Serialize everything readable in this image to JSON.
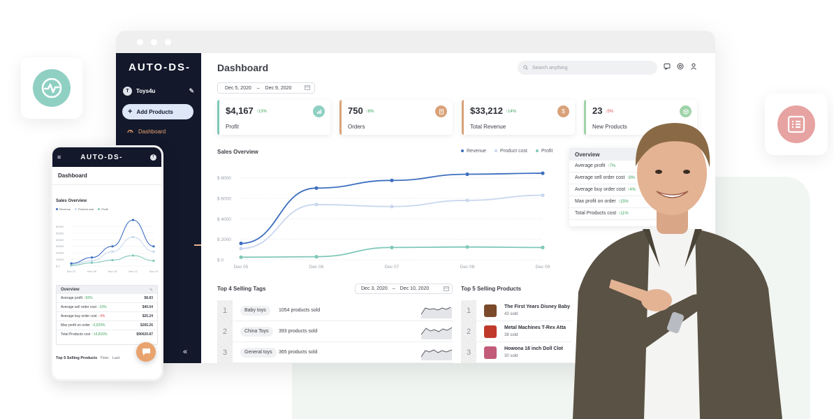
{
  "brand": {
    "logo_text": "AUTO-DS-"
  },
  "sidebar": {
    "store_initial": "T",
    "store_name": "Toys4u",
    "add_products_label": "Add Products",
    "nav_dashboard_label": "Dashboard",
    "collapse_icon": "«"
  },
  "header": {
    "title": "Dashboard",
    "search_placeholder": "Search anything"
  },
  "date_range": {
    "start": "Dec 5, 2020",
    "separator": "–",
    "end": "Dec 9, 2020"
  },
  "stats": [
    {
      "value": "$4,167",
      "change": "↑13%",
      "label": "Profit",
      "accent": "#7fc8b8",
      "icon": "chart-icon"
    },
    {
      "value": "750",
      "change": "↑6%",
      "label": "Orders",
      "accent": "#d9a27a",
      "icon": "receipt-icon"
    },
    {
      "value": "$33,212",
      "change": "↑14%",
      "label": "Total Revenue",
      "accent": "#d9a27a",
      "icon": "dollar-icon"
    },
    {
      "value": "23",
      "change": "↓5%",
      "label": "New Products",
      "accent": "#9fd3a8",
      "icon": "box-icon"
    }
  ],
  "sales_overview": {
    "title": "Sales Overview"
  },
  "chart_data": {
    "type": "line",
    "title": "Sales Overview",
    "x": [
      "Dec 05",
      "Dec 06",
      "Dec 07",
      "Dec 08",
      "Dec 09"
    ],
    "y_ticks": [
      "$ 0",
      "$ 2000",
      "$ 4000",
      "$ 6000",
      "$ 8000"
    ],
    "ylim": [
      0,
      9000
    ],
    "series": [
      {
        "name": "Revenue",
        "color": "#3d6fbf",
        "points": [
          [
            0,
            1600
          ],
          [
            0.5,
            7000
          ],
          [
            1.0,
            7750
          ],
          [
            1.5,
            8350
          ],
          [
            2.0,
            8450
          ]
        ]
      },
      {
        "name": "Product cost",
        "color": "#c9d7ee",
        "points": [
          [
            0,
            1100
          ],
          [
            0.5,
            5400
          ],
          [
            1.0,
            5200
          ],
          [
            1.5,
            5800
          ],
          [
            2.0,
            6300
          ]
        ]
      },
      {
        "name": "Profit",
        "color": "#7fc8b8",
        "points": [
          [
            0,
            250
          ],
          [
            0.5,
            300
          ],
          [
            1.0,
            1200
          ],
          [
            1.5,
            1250
          ],
          [
            2.0,
            1200
          ]
        ]
      }
    ],
    "grid": true,
    "legend": "top-right"
  },
  "overview": {
    "title": "Overview",
    "rows": [
      {
        "label": "Average profit",
        "change": "↑7%"
      },
      {
        "label": "Average sell order cost",
        "change": "↑8%"
      },
      {
        "label": "Average buy order cost",
        "change": "↑4%"
      },
      {
        "label": "Max profit on order",
        "change": "↑15%"
      },
      {
        "label": "Total Products cost",
        "change": "↑11%"
      }
    ]
  },
  "tags": {
    "title": "Top 4 Selling Tags",
    "date_start": "Dec 3, 2020",
    "date_separator": "–",
    "date_end": "Dec 10, 2020",
    "rows": [
      {
        "rank": "1",
        "tag": "Baby toys",
        "sold": "1054 products sold"
      },
      {
        "rank": "2",
        "tag": "China Toys",
        "sold": "393 products sold"
      },
      {
        "rank": "3",
        "tag": "General toys",
        "sold": "365 products sold"
      }
    ]
  },
  "products": {
    "title": "Top 5 Selling Products",
    "rows": [
      {
        "rank": "1",
        "name": "The First Years Disney Baby",
        "sold": "43 sold",
        "thumb_color": "#7a4a2a"
      },
      {
        "rank": "2",
        "name": "Metal Machines T-Rex Atta",
        "sold": "38 sold",
        "thumb_color": "#c0392b"
      },
      {
        "rank": "3",
        "name": "Howona 18 inch Doll Clot",
        "sold": "30 sold",
        "thumb_color": "#c25b7a"
      }
    ]
  },
  "mobile": {
    "title": "Dashboard",
    "sales_title": "Sales Overview",
    "legend": [
      "Revenue",
      "Product cost",
      "Profit"
    ],
    "chart": {
      "y_ticks": [
        "$ 0",
        "10000",
        "20000",
        "30000",
        "40000",
        "50000",
        "60000"
      ],
      "x": [
        "Nov 01",
        "Nov 08",
        "Nov 15",
        "Nov 22",
        "Nov 29"
      ],
      "revenue": [
        4000,
        13000,
        30000,
        70000,
        30000
      ],
      "cost": [
        3000,
        8000,
        22000,
        44000,
        22000
      ],
      "profit": [
        1000,
        5000,
        9000,
        16000,
        8000
      ]
    },
    "overview_title": "Overview",
    "overview_rows": [
      {
        "label": "Average profit",
        "change": "↑56%",
        "value": "$8.83"
      },
      {
        "label": "Average sell order cost",
        "change": "↑10%",
        "value": "$40.04"
      },
      {
        "label": "Average buy order cost",
        "change": "↓4%",
        "value": "$25.24"
      },
      {
        "label": "Max profit on order",
        "change": "↑3,620%",
        "value": "$265.26"
      },
      {
        "label": "Total Products cost",
        "change": "↑14,815%",
        "value": "$90620.87"
      }
    ],
    "top5_title": "Top 5 Selling Products",
    "top5_time": "Time:",
    "top5_range": "Last"
  },
  "colors": {
    "sidebar": "#13182b",
    "accent_orange": "#e9a36e",
    "revenue": "#3d6fbf",
    "cost": "#c9d7ee",
    "profit": "#7fc8b8"
  }
}
